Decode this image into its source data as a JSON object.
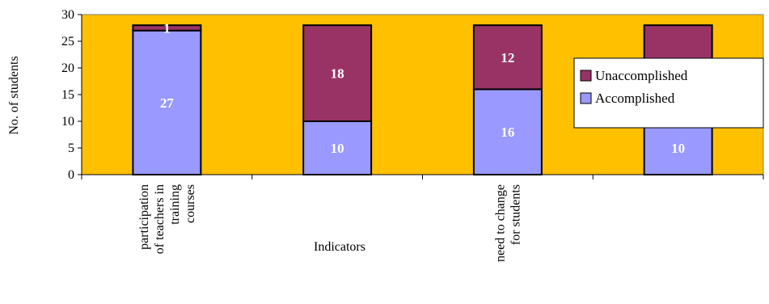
{
  "chart_data": {
    "type": "bar",
    "stacked": true,
    "title": "",
    "xlabel": "Indicators",
    "ylabel": "No. of students",
    "ylim": [
      0,
      30
    ],
    "yticks": [
      0,
      5,
      10,
      15,
      20,
      25,
      30
    ],
    "grid": false,
    "legend_position": "right",
    "plot_background": "#FFC000",
    "categories": [
      "participation of teachers in training courses",
      "",
      "need to change for students",
      ""
    ],
    "series": [
      {
        "name": "Accomplished",
        "color": "#9999FF",
        "values": [
          27,
          10,
          16,
          10
        ]
      },
      {
        "name": "Unaccomplished",
        "color": "#993366",
        "values": [
          1,
          18,
          12,
          18
        ]
      }
    ]
  }
}
